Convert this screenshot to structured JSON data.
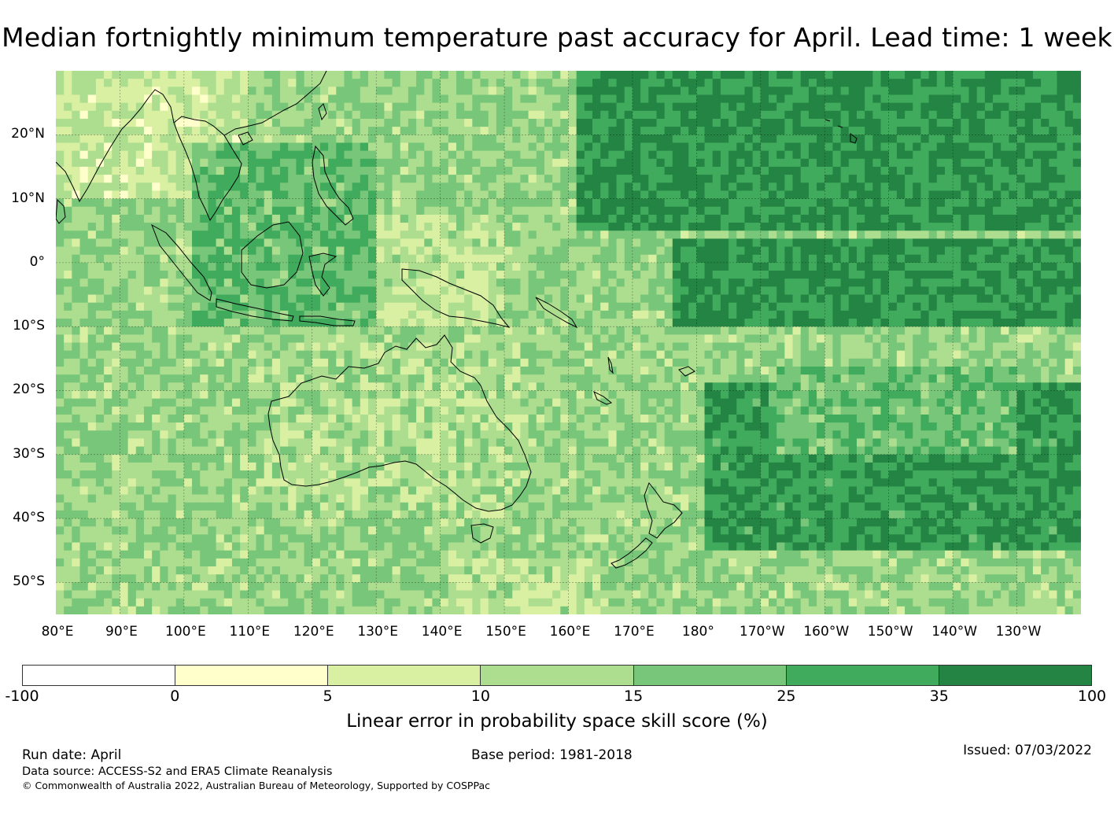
{
  "title": "Median fortnightly minimum temperature past accuracy for April. Lead time: 1 week",
  "map": {
    "lon_range": [
      80,
      240
    ],
    "lat_range": [
      -55,
      30
    ],
    "lat_ticks": [
      "20°N",
      "10°N",
      "0°",
      "10°S",
      "20°S",
      "30°S",
      "40°S",
      "50°S"
    ],
    "lon_ticks": [
      "80°E",
      "90°E",
      "100°E",
      "110°E",
      "120°E",
      "130°E",
      "140°E",
      "150°E",
      "160°E",
      "170°E",
      "180°",
      "170°W",
      "160°W",
      "150°W",
      "140°W",
      "130°W"
    ],
    "graticule": true
  },
  "colorbar": {
    "ticks": [
      "-100",
      "0",
      "5",
      "10",
      "15",
      "25",
      "35",
      "100"
    ],
    "colors": [
      "#ffffff",
      "#ffffcc",
      "#d9f0a3",
      "#addd8e",
      "#78c679",
      "#41ab5d",
      "#238443"
    ],
    "label": "Linear error in probability space skill score (%)"
  },
  "footer": {
    "run_date": "Run date: April",
    "base_period": "Base period: 1981-2018",
    "issued": "Issued: 07/03/2022",
    "data_source": "Data source: ACCESS-S2 and ERA5 Climate Reanalysis",
    "copyright": "© Commonwealth of Australia 2022, Australian Bureau of Meteorology, Supported by COSPPac"
  }
}
